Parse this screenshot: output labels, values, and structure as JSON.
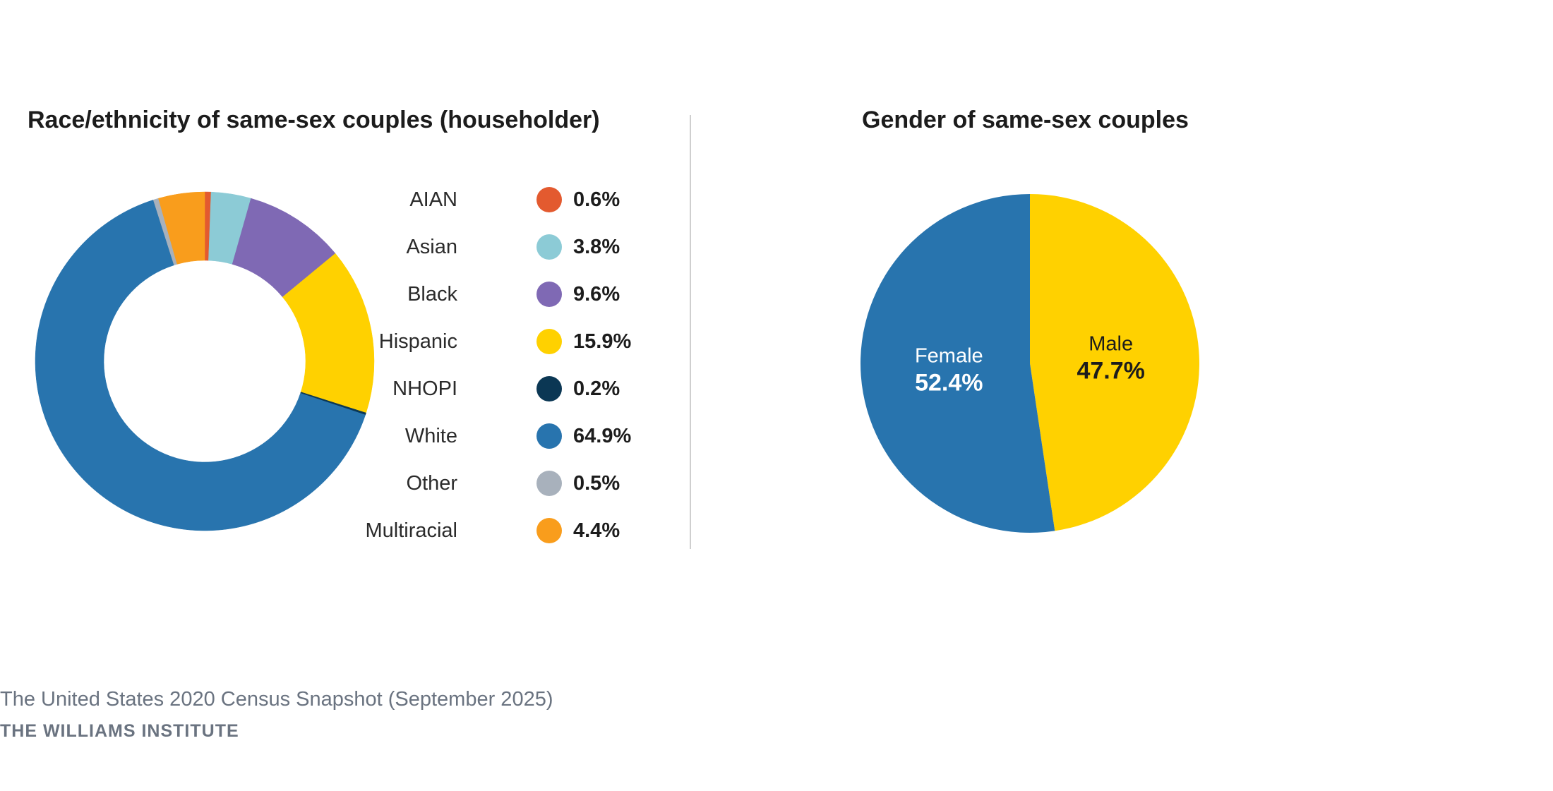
{
  "footer": {
    "source": "The United States 2020 Census Snapshot (September 2025)",
    "organization": "THE WILLIAMS INSTITUTE"
  },
  "chart_data": [
    {
      "type": "pie",
      "variant": "donut",
      "title": "Race/ethnicity of same-sex couples (householder)",
      "legend_position": "right",
      "categories": [
        "AIAN",
        "Asian",
        "Black",
        "Hispanic",
        "NHOPI",
        "White",
        "Other",
        "Multiracial"
      ],
      "values": [
        0.6,
        3.8,
        9.6,
        15.9,
        0.2,
        64.9,
        0.5,
        4.4
      ],
      "value_labels": [
        "0.6%",
        "3.8%",
        "9.6%",
        "15.9%",
        "0.2%",
        "64.9%",
        "0.5%",
        "4.4%"
      ],
      "colors": [
        "#e35a2f",
        "#8ccbd6",
        "#7f69b4",
        "#ffd100",
        "#0b3754",
        "#2874ae",
        "#a8b1bc",
        "#f99d1c"
      ]
    },
    {
      "type": "pie",
      "title": "Gender of same-sex couples",
      "categories": [
        "Female",
        "Male"
      ],
      "values": [
        52.4,
        47.7
      ],
      "value_labels": [
        "52.4%",
        "47.7%"
      ],
      "colors": [
        "#2874ae",
        "#ffd100"
      ],
      "label_colors": [
        "#ffffff",
        "#1c1c1c"
      ]
    }
  ]
}
